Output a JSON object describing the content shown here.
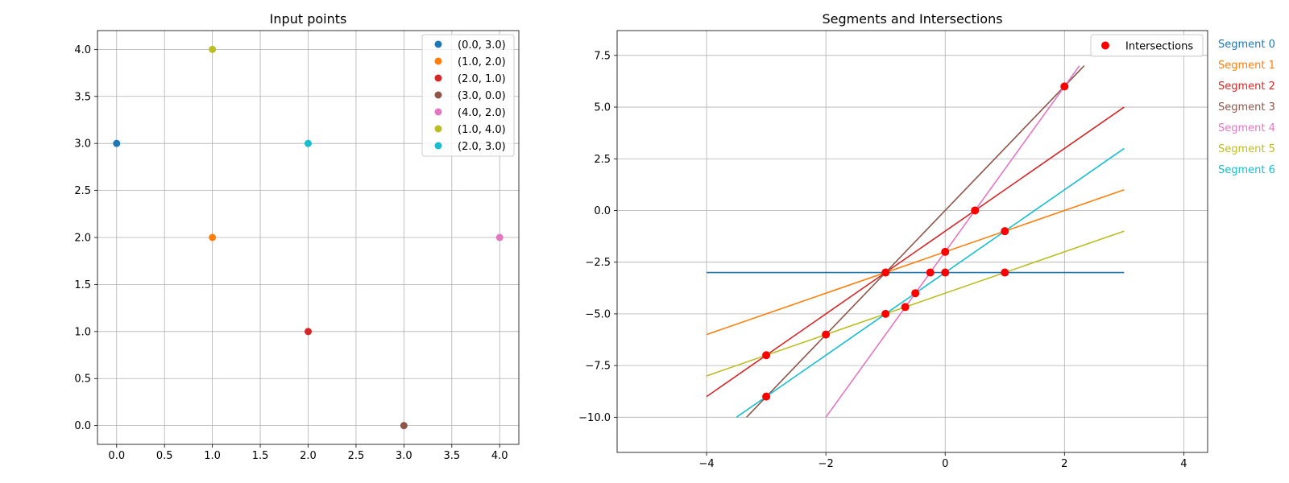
{
  "chart_data": [
    {
      "type": "scatter",
      "title": "Input points",
      "xlabel": "",
      "ylabel": "",
      "xlim": [
        -0.2,
        4.2
      ],
      "ylim": [
        -0.2,
        4.2
      ],
      "xticks": [
        0.0,
        0.5,
        1.0,
        1.5,
        2.0,
        2.5,
        3.0,
        3.5,
        4.0
      ],
      "xtick_labels": [
        "0.0",
        "0.5",
        "1.0",
        "1.5",
        "2.0",
        "2.5",
        "3.0",
        "3.5",
        "4.0"
      ],
      "yticks": [
        0.0,
        0.5,
        1.0,
        1.5,
        2.0,
        2.5,
        3.0,
        3.5,
        4.0
      ],
      "ytick_labels": [
        "0.0",
        "0.5",
        "1.0",
        "1.5",
        "2.0",
        "2.5",
        "3.0",
        "3.5",
        "4.0"
      ],
      "grid": true,
      "legend_position": "top-right",
      "series": [
        {
          "name": "(0.0, 3.0)",
          "color": "#1f77b4",
          "x": [
            0.0
          ],
          "y": [
            3.0
          ]
        },
        {
          "name": "(1.0, 2.0)",
          "color": "#ff7f0e",
          "x": [
            1.0
          ],
          "y": [
            2.0
          ]
        },
        {
          "name": "(2.0, 1.0)",
          "color": "#d62728",
          "x": [
            2.0
          ],
          "y": [
            1.0
          ]
        },
        {
          "name": "(3.0, 0.0)",
          "color": "#8c564b",
          "x": [
            3.0
          ],
          "y": [
            0.0
          ]
        },
        {
          "name": "(4.0, 2.0)",
          "color": "#e377c2",
          "x": [
            4.0
          ],
          "y": [
            2.0
          ]
        },
        {
          "name": "(1.0, 4.0)",
          "color": "#bcbd22",
          "x": [
            1.0
          ],
          "y": [
            4.0
          ]
        },
        {
          "name": "(2.0, 3.0)",
          "color": "#17becf",
          "x": [
            2.0
          ],
          "y": [
            3.0
          ]
        }
      ]
    },
    {
      "type": "line",
      "title": "Segments and Intersections",
      "xlabel": "",
      "ylabel": "",
      "xlim": [
        -5.5,
        4.4
      ],
      "ylim": [
        -11.7,
        8.7
      ],
      "xticks": [
        -4,
        -2,
        0,
        2,
        4
      ],
      "xtick_labels": [
        "−4",
        "−2",
        "0",
        "2",
        "4"
      ],
      "yticks": [
        -10.0,
        -7.5,
        -5.0,
        -2.5,
        0.0,
        2.5,
        5.0,
        7.5
      ],
      "ytick_labels": [
        "−10.0",
        "−7.5",
        "−5.0",
        "−2.5",
        "0.0",
        "2.5",
        "5.0",
        "7.5"
      ],
      "grid": true,
      "legend_position": "top-right",
      "segments": [
        {
          "label": "Segment 0",
          "color": "#1f77b4",
          "x": [
            -4,
            3
          ],
          "y": [
            -3,
            -3
          ]
        },
        {
          "label": "Segment 1",
          "color": "#ff7f0e",
          "x": [
            -4,
            3
          ],
          "y": [
            -6,
            1
          ]
        },
        {
          "label": "Segment 2",
          "color": "#d62728",
          "x": [
            -4,
            3
          ],
          "y": [
            -9,
            5
          ]
        },
        {
          "label": "Segment 3",
          "color": "#8c564b",
          "x": [
            -3.33,
            2.33
          ],
          "y": [
            -10,
            7
          ]
        },
        {
          "label": "Segment 4",
          "color": "#e377c2",
          "x": [
            -2,
            2.25
          ],
          "y": [
            -10,
            7
          ]
        },
        {
          "label": "Segment 5",
          "color": "#bcbd22",
          "x": [
            -4,
            3
          ],
          "y": [
            -8,
            -1
          ]
        },
        {
          "label": "Segment 6",
          "color": "#17becf",
          "x": [
            -3.5,
            3
          ],
          "y": [
            -10,
            3
          ]
        }
      ],
      "intersections": {
        "name": "Intersections",
        "color": "#ff0000",
        "x": [
          -3,
          -3,
          -2,
          -1,
          -1,
          -0.67,
          -0.5,
          -0.25,
          0,
          0,
          0.5,
          1,
          1,
          2
        ],
        "y": [
          -7,
          -9,
          -6,
          -3,
          -5,
          -4.67,
          -4,
          -3,
          -3,
          -2,
          0,
          -1,
          -3,
          6
        ]
      }
    }
  ]
}
